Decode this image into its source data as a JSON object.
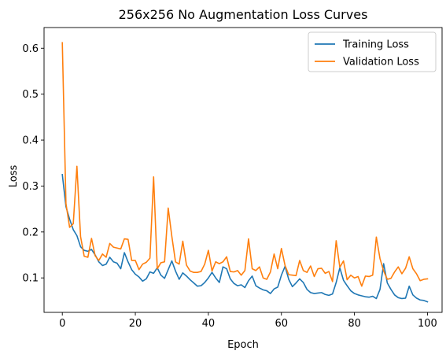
{
  "chart_data": {
    "type": "line",
    "title": "256x256 No Augmentation Loss Curves",
    "xlabel": "Epoch",
    "ylabel": "Loss",
    "xlim": [
      -5,
      104
    ],
    "ylim": [
      0.025,
      0.645
    ],
    "xticks": [
      0,
      20,
      40,
      60,
      80,
      100
    ],
    "yticks": [
      0.1,
      0.2,
      0.3,
      0.4,
      0.5,
      0.6
    ],
    "xtick_labels": [
      "0",
      "20",
      "40",
      "60",
      "80",
      "100"
    ],
    "ytick_labels": [
      "0.1",
      "0.2",
      "0.3",
      "0.4",
      "0.5",
      "0.6"
    ],
    "grid": false,
    "legend_position": "top-right",
    "series": [
      {
        "name": "Training Loss",
        "color": "#1f77b4",
        "values": [
          0.325,
          0.255,
          0.228,
          0.205,
          0.192,
          0.168,
          0.16,
          0.158,
          0.162,
          0.15,
          0.135,
          0.127,
          0.13,
          0.145,
          0.135,
          0.132,
          0.12,
          0.155,
          0.135,
          0.118,
          0.108,
          0.102,
          0.093,
          0.098,
          0.113,
          0.11,
          0.122,
          0.106,
          0.099,
          0.118,
          0.137,
          0.115,
          0.097,
          0.111,
          0.104,
          0.096,
          0.089,
          0.082,
          0.083,
          0.09,
          0.1,
          0.112,
          0.1,
          0.09,
          0.124,
          0.12,
          0.098,
          0.088,
          0.083,
          0.085,
          0.079,
          0.094,
          0.104,
          0.083,
          0.078,
          0.074,
          0.072,
          0.066,
          0.076,
          0.08,
          0.106,
          0.125,
          0.097,
          0.081,
          0.089,
          0.098,
          0.09,
          0.075,
          0.068,
          0.066,
          0.067,
          0.068,
          0.064,
          0.062,
          0.065,
          0.09,
          0.122,
          0.095,
          0.083,
          0.072,
          0.066,
          0.063,
          0.061,
          0.059,
          0.058,
          0.06,
          0.055,
          0.075,
          0.131,
          0.089,
          0.075,
          0.063,
          0.057,
          0.055,
          0.056,
          0.082,
          0.063,
          0.056,
          0.052,
          0.051,
          0.048
        ]
      },
      {
        "name": "Validation Loss",
        "color": "#ff7f0e",
        "values": [
          0.612,
          0.262,
          0.21,
          0.218,
          0.343,
          0.19,
          0.147,
          0.145,
          0.186,
          0.148,
          0.138,
          0.152,
          0.145,
          0.175,
          0.167,
          0.165,
          0.163,
          0.185,
          0.184,
          0.138,
          0.138,
          0.118,
          0.13,
          0.134,
          0.143,
          0.32,
          0.12,
          0.133,
          0.135,
          0.252,
          0.19,
          0.135,
          0.13,
          0.18,
          0.128,
          0.115,
          0.112,
          0.112,
          0.114,
          0.13,
          0.16,
          0.115,
          0.135,
          0.131,
          0.135,
          0.146,
          0.114,
          0.113,
          0.116,
          0.106,
          0.116,
          0.185,
          0.12,
          0.116,
          0.124,
          0.1,
          0.097,
          0.113,
          0.152,
          0.12,
          0.164,
          0.127,
          0.107,
          0.106,
          0.105,
          0.138,
          0.116,
          0.112,
          0.126,
          0.103,
          0.12,
          0.121,
          0.11,
          0.114,
          0.092,
          0.181,
          0.123,
          0.137,
          0.096,
          0.106,
          0.1,
          0.103,
          0.082,
          0.104,
          0.103,
          0.106,
          0.189,
          0.142,
          0.115,
          0.097,
          0.099,
          0.113,
          0.124,
          0.109,
          0.121,
          0.146,
          0.12,
          0.109,
          0.094,
          0.097,
          0.098
        ]
      }
    ]
  }
}
